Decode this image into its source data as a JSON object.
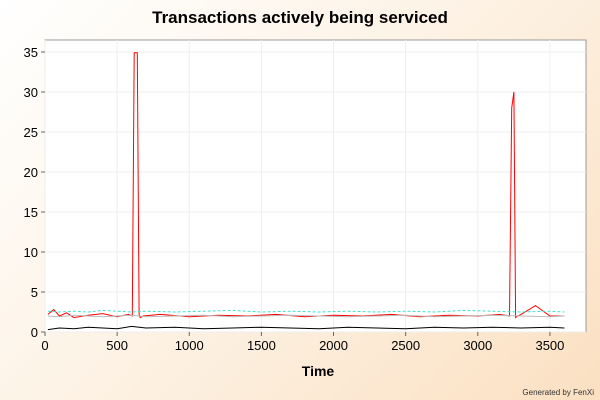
{
  "chart_data": {
    "type": "line",
    "title": "Transactions actively being serviced",
    "xlabel": "Time",
    "ylabel": "",
    "xlim": [
      0,
      3750
    ],
    "ylim": [
      0,
      36.5
    ],
    "xticks": [
      0,
      500,
      1000,
      1500,
      2000,
      2500,
      3000,
      3500
    ],
    "yticks": [
      0,
      5,
      10,
      15,
      20,
      25,
      30,
      35
    ],
    "grid": true,
    "legend": "none",
    "series": [
      {
        "color": "#ff0000",
        "x": [
          20,
          60,
          100,
          150,
          200,
          300,
          400,
          500,
          580,
          605,
          618,
          625,
          640,
          652,
          660,
          680,
          800,
          1000,
          1200,
          1400,
          1600,
          1800,
          2000,
          2200,
          2400,
          2600,
          2800,
          3000,
          3150,
          3220,
          3235,
          3250,
          3262,
          3275,
          3300,
          3400,
          3500,
          3600
        ],
        "y": [
          2.2,
          2.8,
          2.0,
          2.4,
          1.8,
          2.1,
          2.3,
          1.9,
          2.2,
          2.0,
          34.9,
          34.9,
          34.9,
          2.2,
          1.8,
          2.0,
          2.2,
          1.9,
          2.1,
          2.0,
          2.2,
          1.9,
          2.1,
          2.0,
          2.2,
          1.9,
          2.1,
          2.0,
          2.2,
          2.0,
          28.0,
          30.0,
          1.8,
          2.0,
          2.2,
          3.3,
          2.0,
          2.0
        ]
      },
      {
        "color": "#40e0d0",
        "x": [
          20,
          100,
          200,
          300,
          400,
          500,
          600,
          700,
          900,
          1100,
          1300,
          1500,
          1700,
          1900,
          2100,
          2300,
          2500,
          2700,
          2900,
          3100,
          3300,
          3500,
          3600
        ],
        "y": [
          2.6,
          2.5,
          2.6,
          2.5,
          2.7,
          2.6,
          2.5,
          2.6,
          2.5,
          2.6,
          2.7,
          2.5,
          2.6,
          2.5,
          2.6,
          2.5,
          2.6,
          2.5,
          2.7,
          2.6,
          2.5,
          2.6,
          2.5
        ]
      },
      {
        "color": "#bbbbbb",
        "x": [
          20,
          100,
          200,
          300,
          400,
          500,
          600,
          700,
          900,
          1100,
          1300,
          1500,
          1700,
          1900,
          2100,
          2300,
          2500,
          2700,
          2900,
          3100,
          3300,
          3500,
          3600
        ],
        "y": [
          2.0,
          1.9,
          2.1,
          2.0,
          1.9,
          2.0,
          2.1,
          1.9,
          2.0,
          2.1,
          1.9,
          2.0,
          2.1,
          2.0,
          1.9,
          2.0,
          2.1,
          1.9,
          2.0,
          2.1,
          2.0,
          1.9,
          2.0
        ]
      },
      {
        "color": "#000000",
        "x": [
          20,
          100,
          200,
          300,
          400,
          500,
          600,
          700,
          900,
          1100,
          1300,
          1500,
          1700,
          1900,
          2100,
          2300,
          2500,
          2700,
          2900,
          3100,
          3300,
          3500,
          3600
        ],
        "y": [
          0.3,
          0.5,
          0.4,
          0.6,
          0.5,
          0.4,
          0.7,
          0.5,
          0.6,
          0.4,
          0.5,
          0.6,
          0.5,
          0.4,
          0.6,
          0.5,
          0.4,
          0.6,
          0.5,
          0.6,
          0.5,
          0.6,
          0.5
        ]
      }
    ]
  },
  "footer": "Generated by FenXi"
}
